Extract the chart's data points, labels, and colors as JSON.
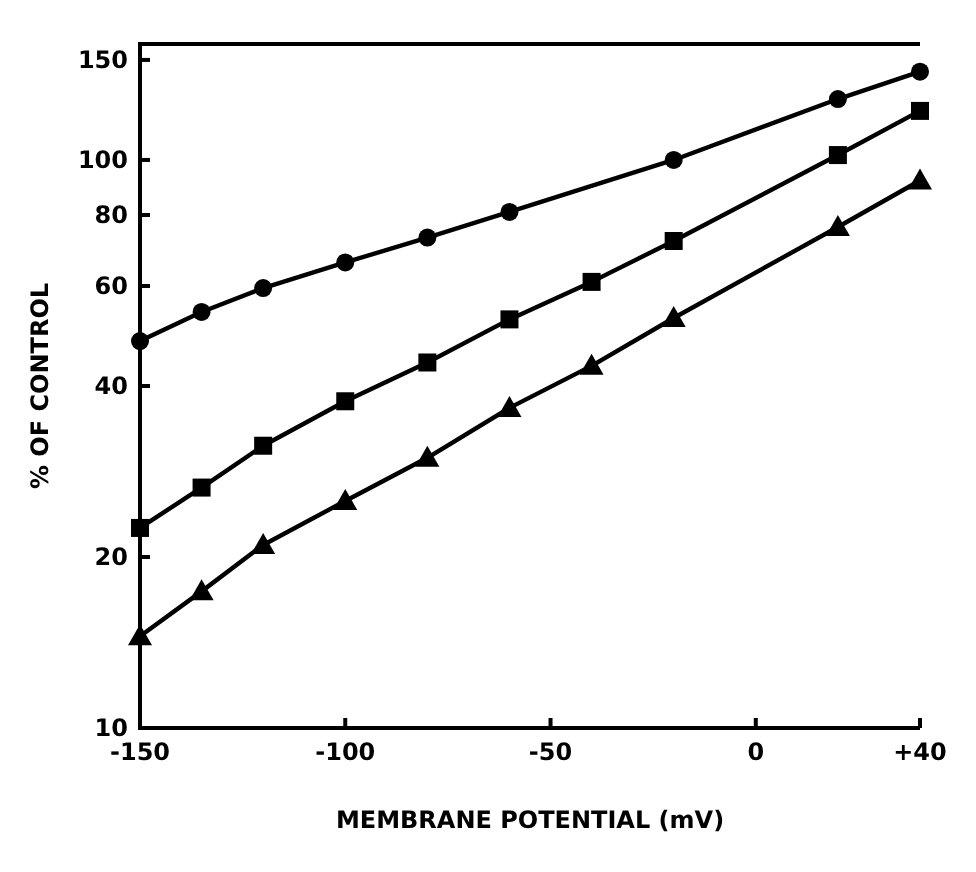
{
  "chart_data": {
    "type": "line",
    "xlabel": "MEMBRANE POTENTIAL (mV)",
    "ylabel": "% OF CONTROL",
    "log": "y",
    "line_style": "solid",
    "xlim": [
      -150,
      40
    ],
    "xticks": [
      -150,
      -100,
      -50,
      0,
      {
        "value": 40,
        "label": "+40"
      }
    ],
    "ylim": [
      10,
      160
    ],
    "yticks": [
      10,
      20,
      40,
      60,
      80,
      100,
      150
    ],
    "series": [
      {
        "color": "#000000",
        "marker": "circle",
        "x": [
          -150,
          -135,
          -120,
          -100,
          -80,
          -60,
          -20,
          20,
          40
        ],
        "values": [
          48,
          54,
          59.5,
          66,
          73,
          81,
          100,
          128,
          143
        ]
      },
      {
        "color": "#000000",
        "marker": "square",
        "x": [
          -150,
          -135,
          -120,
          -100,
          -80,
          -60,
          -40,
          -20,
          20,
          40
        ],
        "values": [
          22.5,
          26.5,
          31.4,
          37.6,
          44,
          52.4,
          61,
          72,
          102,
          122
        ]
      },
      {
        "color": "#000000",
        "marker": "triangle",
        "x": [
          -150,
          -135,
          -120,
          -100,
          -80,
          -60,
          -40,
          -20,
          20,
          40
        ],
        "values": [
          14.5,
          17.4,
          21,
          25.1,
          29.9,
          36.6,
          43.4,
          52.7,
          76.2,
          92
        ]
      }
    ]
  }
}
